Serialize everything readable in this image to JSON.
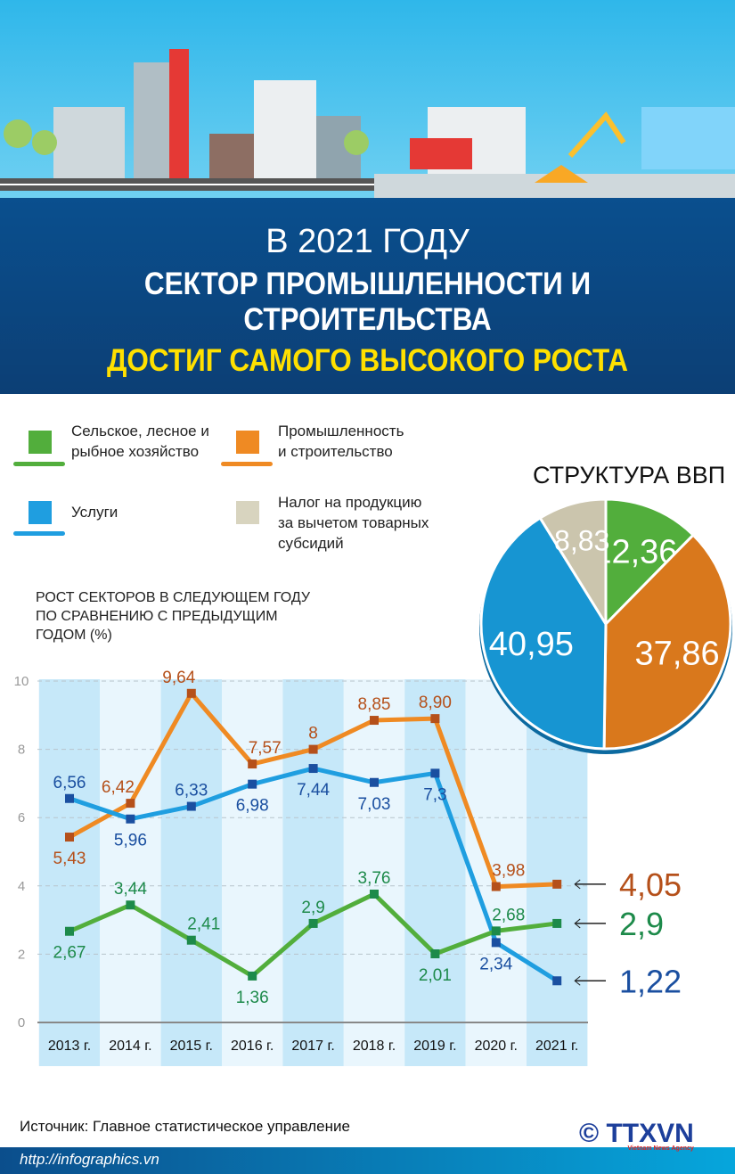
{
  "header": {
    "line1": "В 2021 ГОДУ",
    "line2": "СЕКТОР ПРОМЫШЛЕННОСТИ И СТРОИТЕЛЬСТВА",
    "line3": "ДОСТИГ САМОГО ВЫСОКОГО РОСТА"
  },
  "legend": [
    {
      "label1": "Сельское, лесное и",
      "label2": "рыбное хозяйство",
      "label3": "",
      "color": "#52ae3c"
    },
    {
      "label1": "Промышленность",
      "label2": "и строительство",
      "label3": "",
      "color": "#ef8a23"
    },
    {
      "label1": "Услуги",
      "label2": "",
      "label3": "",
      "color": "#1f9ee0"
    },
    {
      "label1": "Налог на продукцию",
      "label2": "за вычетом товарных",
      "label3": "субсидий",
      "color": "#d8d4bf"
    }
  ],
  "chart_data": [
    {
      "type": "pie",
      "title": "СТРУКТУРА ВВП",
      "slices": [
        {
          "value": 12.36,
          "label": "12,36",
          "color": "#52ae3c"
        },
        {
          "value": 37.86,
          "label": "37,86",
          "color": "#d9781c"
        },
        {
          "value": 40.95,
          "label": "40,95",
          "color": "#1795d2"
        },
        {
          "value": 8.83,
          "label": "8,83",
          "color": "#cbc5ad"
        }
      ]
    },
    {
      "type": "line",
      "title": "РОСТ СЕКТОРОВ В СЛЕДУЮЩЕМ ГОДУ ПО СРАВНЕНИЮ С ПРЕДЫДУЩИМ ГОДОМ (%)",
      "title_lines": [
        "РОСТ СЕКТОРОВ В СЛЕДУЮЩЕМ ГОДУ",
        "ПО СРАВНЕНИЮ С ПРЕДЫДУЩИМ",
        "ГОДОМ (%)"
      ],
      "categories": [
        "2013 г.",
        "2014 г.",
        "2015 г.",
        "2016 г.",
        "2017 г.",
        "2018 г.",
        "2019 г.",
        "2020 г.",
        "2021 г."
      ],
      "ylim": [
        0,
        10
      ],
      "yticks": [
        0,
        2,
        4,
        6,
        8,
        10
      ],
      "grid": true,
      "series": [
        {
          "values": [
            5.43,
            6.42,
            9.64,
            7.57,
            8,
            8.85,
            8.9,
            3.98,
            4.05
          ],
          "labels": [
            "5,43",
            "6,42",
            "9,64",
            "7,57",
            "8",
            "8,85",
            "8,90",
            "3,98",
            "4,05"
          ],
          "color": "#ef8a23",
          "labelColor": "#b5501a"
        },
        {
          "values": [
            6.56,
            5.96,
            6.33,
            6.98,
            7.44,
            7.03,
            7.3,
            2.34,
            1.22
          ],
          "labels": [
            "6,56",
            "5,96",
            "6,33",
            "6,98",
            "7,44",
            "7,03",
            "7,3",
            "2,34",
            "1,22"
          ],
          "color": "#1f9ee0",
          "labelColor": "#1a4fa0"
        },
        {
          "values": [
            2.67,
            3.44,
            2.41,
            1.36,
            2.9,
            3.76,
            2.01,
            2.68,
            2.9
          ],
          "labels": [
            "2,67",
            "3,44",
            "2,41",
            "1,36",
            "2,9",
            "3,76",
            "2,01",
            "2,68",
            "2,9"
          ],
          "color": "#52ae3c",
          "labelColor": "#1d8a4a"
        }
      ]
    }
  ],
  "footer": {
    "source": "Источник: Главное статистическое управление",
    "url": "http://infographics.vn",
    "logo": "TTXVN",
    "logo_sub": "Vietnam News Agency",
    "copyright": "©"
  }
}
